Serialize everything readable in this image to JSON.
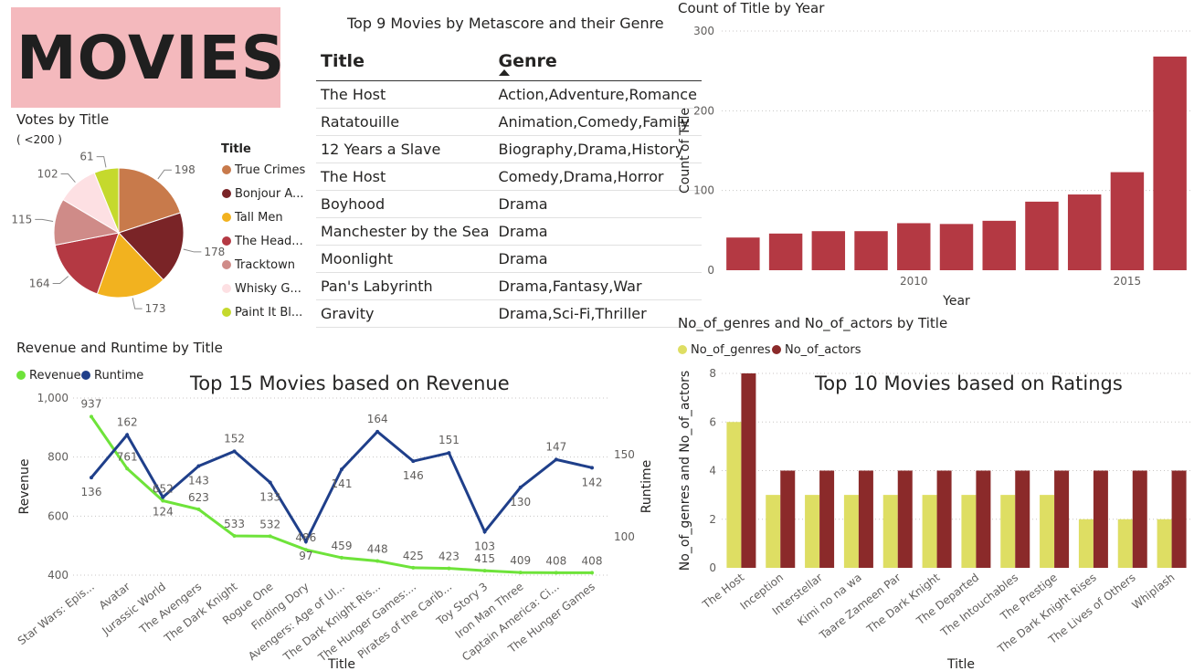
{
  "banner": {
    "title": "MOVIES",
    "color": "#f4b9bd"
  },
  "pie": {
    "title": "Votes by Title",
    "subtitle": "( <200 )",
    "legend_title": "Title",
    "chart_data": {
      "type": "pie",
      "labels": [
        "True Crimes",
        "Bonjour A...",
        "Tall Men",
        "The Head...",
        "Tracktown",
        "Whisky G...",
        "Paint It Bl..."
      ],
      "values": [
        198,
        178,
        173,
        164,
        115,
        102,
        61
      ],
      "colors": [
        "#c87a4b",
        "#7a2427",
        "#f2b21f",
        "#b43943",
        "#cf8b88",
        "#fde0e3",
        "#c5d92d"
      ]
    }
  },
  "table": {
    "title": "Top 9 Movies by Metascore and their Genre",
    "headers": [
      "Title",
      "Genre"
    ],
    "rows": [
      [
        "The Host",
        "Action,Adventure,Romance"
      ],
      [
        "Ratatouille",
        "Animation,Comedy,Family"
      ],
      [
        "12 Years a Slave",
        "Biography,Drama,History"
      ],
      [
        "The Host",
        "Comedy,Drama,Horror"
      ],
      [
        "Boyhood",
        "Drama"
      ],
      [
        "Manchester by the Sea",
        "Drama"
      ],
      [
        "Moonlight",
        "Drama"
      ],
      [
        "Pan's Labyrinth",
        "Drama,Fantasy,War"
      ],
      [
        "Gravity",
        "Drama,Sci-Fi,Thriller"
      ]
    ]
  },
  "year": {
    "title": "Count of Title by Year",
    "chart_data": {
      "type": "bar",
      "categories": [
        "2006",
        "2007",
        "2008",
        "2009",
        "2010",
        "2011",
        "2012",
        "2013",
        "2014",
        "2015",
        "2016"
      ],
      "values": [
        41,
        46,
        49,
        49,
        59,
        58,
        62,
        86,
        95,
        123,
        268
      ],
      "xlabel": "Year",
      "ylabel": "Count of Title",
      "ylim": [
        0,
        300
      ],
      "yticks": [
        "0",
        "100",
        "200",
        "300"
      ],
      "xticks": [
        "2010",
        "2015"
      ],
      "color": "#b43943"
    }
  },
  "revenue": {
    "title": "Revenue and Runtime by Title",
    "overlay": "Top 15 Movies based on Revenue",
    "chart_data": {
      "type": "line",
      "categories": [
        "Star Wars: Epis...",
        "Avatar",
        "Jurassic World",
        "The Avengers",
        "The Dark Knight",
        "Rogue One",
        "Finding Dory",
        "Avengers: Age of Ul...",
        "The Dark Knight Ris...",
        "The Hunger Games:...",
        "Pirates of the Carib...",
        "Toy Story 3",
        "Iron Man Three",
        "Captain America: Ci...",
        "The Hunger Games"
      ],
      "series": [
        {
          "name": "Revenue",
          "values": [
            937,
            761,
            652,
            623,
            533,
            532,
            486,
            459,
            448,
            425,
            423,
            415,
            409,
            408,
            408
          ],
          "color": "#6ee33a"
        },
        {
          "name": "Runtime",
          "values": [
            136,
            162,
            124,
            143,
            152,
            133,
            97,
            141,
            164,
            146,
            151,
            103,
            130,
            147,
            142
          ],
          "color": "#1f3f8a"
        }
      ],
      "revenue_labels": [
        "937",
        "761",
        "652",
        "623",
        "533",
        "532",
        "486",
        "459",
        "448",
        "425",
        "423",
        "415",
        "409",
        "408",
        "408"
      ],
      "runtime_labels": [
        "136",
        "162",
        "124",
        "143",
        "152",
        "133",
        "97",
        "141",
        "164",
        "146",
        "151",
        "103",
        "130",
        "147",
        "142"
      ],
      "xlabel": "Title",
      "ylabel": "Revenue",
      "y2label": "Runtime",
      "ylim": [
        400,
        1000
      ],
      "yticks": [
        "400",
        "600",
        "800",
        "1,000"
      ],
      "y2ticks": [
        "100",
        "150"
      ]
    }
  },
  "genres": {
    "title": "No_of_genres and No_of_actors by Title",
    "overlay": "Top 10 Movies based on Ratings",
    "chart_data": {
      "type": "bar",
      "categories": [
        "The Host",
        "Inception",
        "Interstellar",
        "Kimi no na wa",
        "Taare Zameen Par",
        "The Dark Knight",
        "The Departed",
        "The Intouchables",
        "The Prestige",
        "The Dark Knight Rises",
        "The Lives of Others",
        "Whiplash"
      ],
      "series": [
        {
          "name": "No_of_genres",
          "values": [
            6,
            3,
            3,
            3,
            3,
            3,
            3,
            3,
            3,
            2,
            2,
            2
          ],
          "color": "#dede63"
        },
        {
          "name": "No_of_actors",
          "values": [
            8,
            4,
            4,
            4,
            4,
            4,
            4,
            4,
            4,
            4,
            4,
            4
          ],
          "color": "#8b2a2a"
        }
      ],
      "xlabel": "Title",
      "ylabel": "No_of_genres and No_of_actors",
      "ylim": [
        0,
        8
      ],
      "yticks": [
        "0",
        "2",
        "4",
        "6",
        "8"
      ]
    }
  }
}
